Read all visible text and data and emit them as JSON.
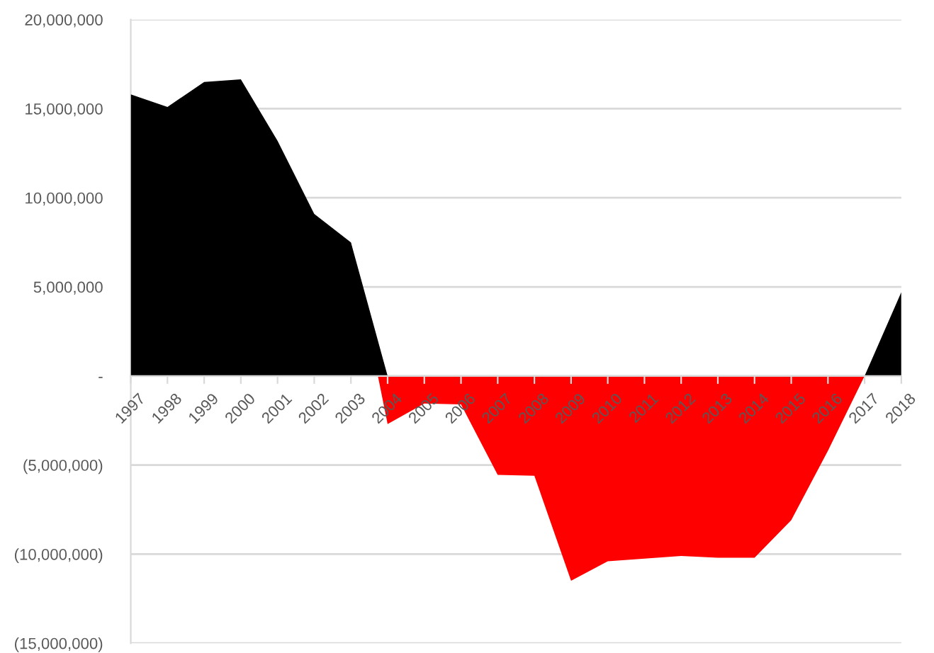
{
  "chart_data": {
    "type": "area",
    "categories": [
      "1997",
      "1998",
      "1999",
      "2000",
      "2001",
      "2002",
      "2003",
      "2004",
      "2005",
      "2006",
      "2007",
      "2008",
      "2009",
      "2010",
      "2011",
      "2012",
      "2013",
      "2014",
      "2015",
      "2016",
      "2017",
      "2018"
    ],
    "series": [
      {
        "color": "#ff0000",
        "values": [
          null,
          null,
          null,
          null,
          null,
          null,
          7500000,
          -2700000,
          -1550000,
          -1600000,
          -5550000,
          -5600000,
          -11500000,
          -10400000,
          -10250000,
          -10100000,
          -10200000,
          -10200000,
          -8100000,
          -4200000,
          0,
          null
        ]
      },
      {
        "color": "#000000",
        "values": [
          15800000,
          15100000,
          16500000,
          16650000,
          13200000,
          9100000,
          7500000,
          0,
          null,
          null,
          null,
          null,
          null,
          null,
          null,
          null,
          null,
          null,
          null,
          null,
          0,
          4700000
        ]
      }
    ],
    "ylim": [
      -15000000,
      20000000
    ],
    "yticks": [
      {
        "value": -15000000,
        "label": "(15,000,000)"
      },
      {
        "value": -10000000,
        "label": "(10,000,000)"
      },
      {
        "value": -5000000,
        "label": "(5,000,000)"
      },
      {
        "value": 0,
        "label": "-"
      },
      {
        "value": 5000000,
        "label": "5,000,000"
      },
      {
        "value": 10000000,
        "label": "10,000,000"
      },
      {
        "value": 15000000,
        "label": "15,000,000"
      },
      {
        "value": 20000000,
        "label": "20,000,000"
      }
    ],
    "grid": "y"
  }
}
